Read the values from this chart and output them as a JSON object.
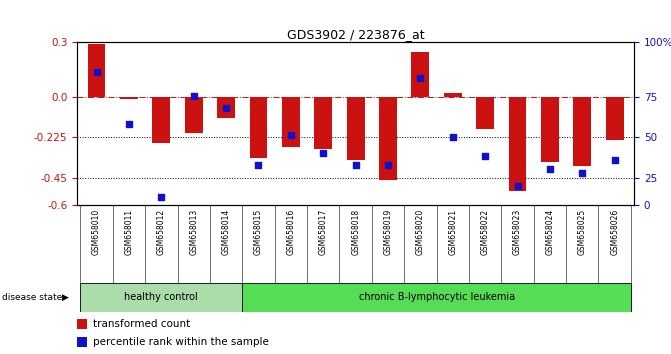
{
  "title": "GDS3902 / 223876_at",
  "samples": [
    "GSM658010",
    "GSM658011",
    "GSM658012",
    "GSM658013",
    "GSM658014",
    "GSM658015",
    "GSM658016",
    "GSM658017",
    "GSM658018",
    "GSM658019",
    "GSM658020",
    "GSM658021",
    "GSM658022",
    "GSM658023",
    "GSM658024",
    "GSM658025",
    "GSM658026"
  ],
  "transformed_count": [
    0.29,
    -0.01,
    -0.255,
    -0.2,
    -0.12,
    -0.34,
    -0.275,
    -0.29,
    -0.35,
    -0.46,
    0.245,
    0.02,
    -0.18,
    -0.52,
    -0.36,
    -0.38,
    -0.24
  ],
  "percentile_rank": [
    82,
    50,
    5,
    67,
    60,
    25,
    43,
    32,
    25,
    25,
    78,
    42,
    30,
    12,
    22,
    20,
    28
  ],
  "group_labels": [
    "healthy control",
    "chronic B-lymphocytic leukemia"
  ],
  "group_sizes": [
    5,
    12
  ],
  "group_colors": [
    "#aaddaa",
    "#55dd55"
  ],
  "bar_color": "#cc1111",
  "dot_color": "#1111cc",
  "ylim": [
    -0.6,
    0.3
  ],
  "yticks_left": [
    0.3,
    0.0,
    -0.225,
    -0.45,
    -0.6
  ],
  "yticks_right_vals": [
    100,
    75,
    50,
    25,
    0
  ],
  "hline_zero": 0.0,
  "hline_dotted1": -0.225,
  "hline_dotted2": -0.45,
  "disease_state_label": "disease state",
  "legend_bar_label": "transformed count",
  "legend_dot_label": "percentile rank within the sample",
  "background_color": "#ffffff",
  "tick_label_color_left": "#cc1111",
  "tick_label_color_right": "#1111cc"
}
